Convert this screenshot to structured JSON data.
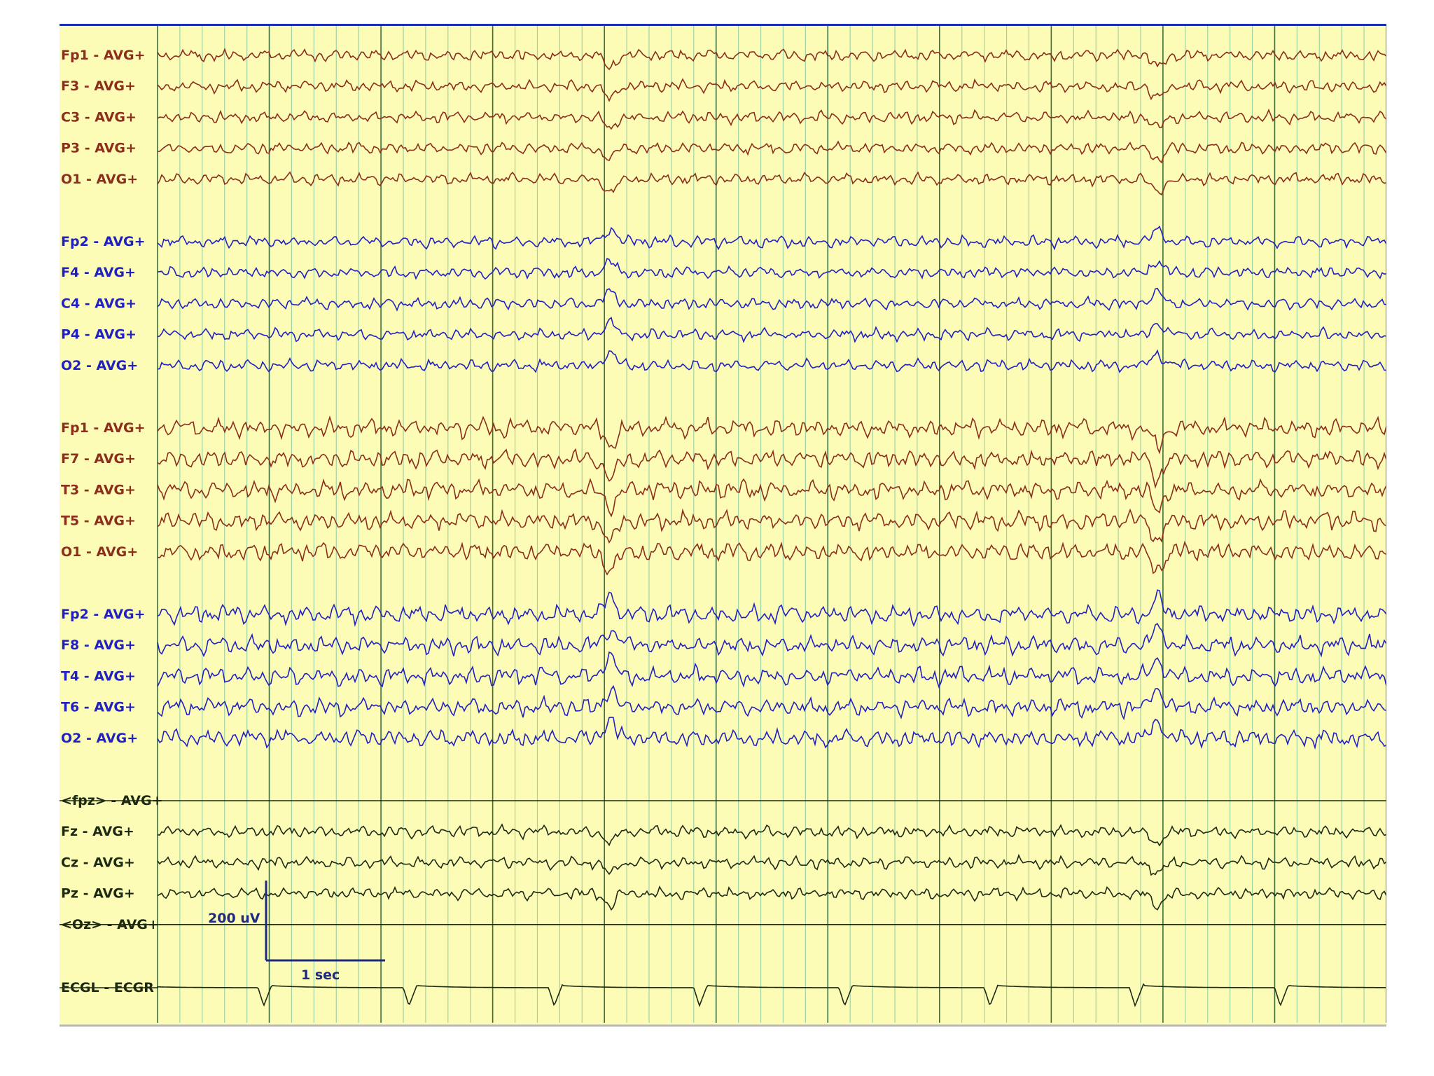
{
  "colors": {
    "background": "#fdfcb6",
    "grid_minor": "#9fd3a6",
    "grid_major": "#3e6e3e",
    "left_hemisphere": "#8c2e1c",
    "right_hemisphere": "#2121c2",
    "midline": "#1d2a12",
    "ecg": "#1d2a12",
    "top_border": "#1a2fb4",
    "scale_bar": "#1e2a80"
  },
  "epoch_seconds": 11,
  "channels": [
    {
      "label": "Fp1 - AVG+",
      "group": "left"
    },
    {
      "label": "F3 - AVG+",
      "group": "left"
    },
    {
      "label": "C3 - AVG+",
      "group": "left"
    },
    {
      "label": "P3 - AVG+",
      "group": "left"
    },
    {
      "label": "O1 - AVG+",
      "group": "left"
    },
    {
      "label": "Fp2 - AVG+",
      "group": "right"
    },
    {
      "label": "F4 - AVG+",
      "group": "right"
    },
    {
      "label": "C4 - AVG+",
      "group": "right"
    },
    {
      "label": "P4 - AVG+",
      "group": "right"
    },
    {
      "label": "O2 - AVG+",
      "group": "right"
    },
    {
      "label": "Fp1 - AVG+",
      "group": "left"
    },
    {
      "label": "F7 - AVG+",
      "group": "left"
    },
    {
      "label": "T3 - AVG+",
      "group": "left"
    },
    {
      "label": "T5 - AVG+",
      "group": "left"
    },
    {
      "label": "O1 - AVG+",
      "group": "left"
    },
    {
      "label": "Fp2 - AVG+",
      "group": "right"
    },
    {
      "label": "F8 - AVG+",
      "group": "right"
    },
    {
      "label": "T4 - AVG+",
      "group": "right"
    },
    {
      "label": "T6 - AVG+",
      "group": "right"
    },
    {
      "label": "O2 - AVG+",
      "group": "right"
    },
    {
      "label": "<fpz> - AVG+",
      "group": "midline-flat"
    },
    {
      "label": "Fz - AVG+",
      "group": "midline"
    },
    {
      "label": "Cz - AVG+",
      "group": "midline"
    },
    {
      "label": "Pz - AVG+",
      "group": "midline"
    },
    {
      "label": "<Oz> - AVG+",
      "group": "midline-flat"
    },
    {
      "label": "ECGL - ECGR",
      "group": "ecg"
    }
  ],
  "scale_bar": {
    "amplitude_label": "200 uV",
    "time_label": "1 sec"
  }
}
